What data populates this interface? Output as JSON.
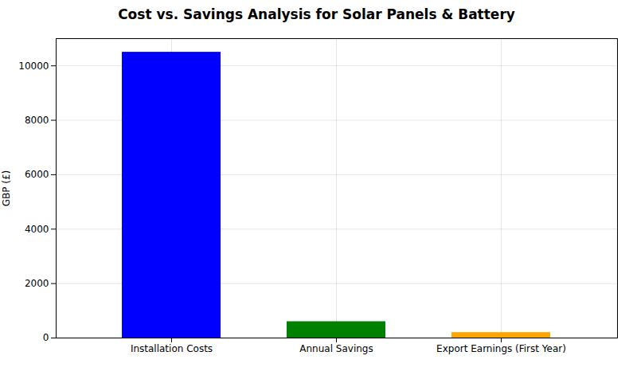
{
  "chart_data": {
    "type": "bar",
    "title": "Cost vs. Savings Analysis for Solar Panels & Battery",
    "categories": [
      "Installation Costs",
      "Annual Savings",
      "Export Earnings (First Year)"
    ],
    "values": [
      10500,
      600,
      200
    ],
    "colors": [
      "#0000ff",
      "#008000",
      "#ffa500"
    ],
    "ylabel": "GBP (£)",
    "ylim": [
      0,
      11000
    ],
    "yticks": [
      0,
      2000,
      4000,
      6000,
      8000,
      10000
    ],
    "grid": true
  }
}
